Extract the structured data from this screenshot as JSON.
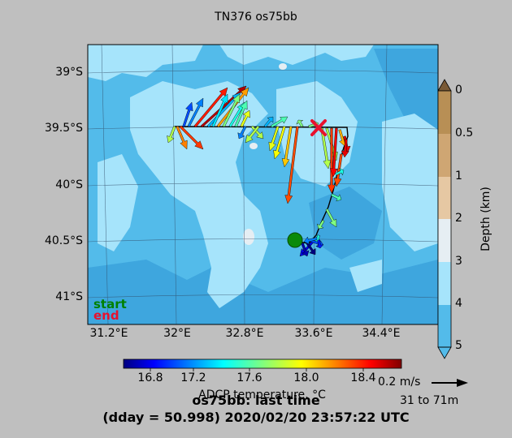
{
  "title": "TN376 os75bb",
  "map": {
    "lat_labels": [
      "39°S",
      "39.5°S",
      "40°S",
      "40.5°S",
      "41°S"
    ],
    "lon_labels": [
      "31.2°E",
      "32°E",
      "32.8°E",
      "33.6°E",
      "34.4°E"
    ],
    "start_label": "start",
    "end_label": "end",
    "start_color": "#008000",
    "end_color": "#e8112d",
    "track_color": "#000000",
    "end_marker": "red-x",
    "start_marker": "green-dot"
  },
  "depth_bar": {
    "label": "Depth (km)",
    "ticks": [
      "0",
      "0.5",
      "1",
      "2",
      "3",
      "4",
      "5"
    ],
    "colors": [
      "#7a5a36",
      "#b88f55",
      "#cfa673",
      "#e6c8a3",
      "#e6eef3",
      "#a6e4fb",
      "#53bbea"
    ]
  },
  "temp_bar": {
    "label": "ADCP temperature, °C",
    "ticks": [
      "16.8",
      "17.2",
      "17.6",
      "18.0",
      "18.4"
    ],
    "range": [
      16.6,
      18.7
    ]
  },
  "scale": {
    "speed_label": "0.2 m/s",
    "depth_range": "31 to 71m"
  },
  "footer": {
    "line1": "os75bb: last time",
    "line2": "(dday = 50.998) 2020/02/20 23:57:22 UTC"
  }
}
